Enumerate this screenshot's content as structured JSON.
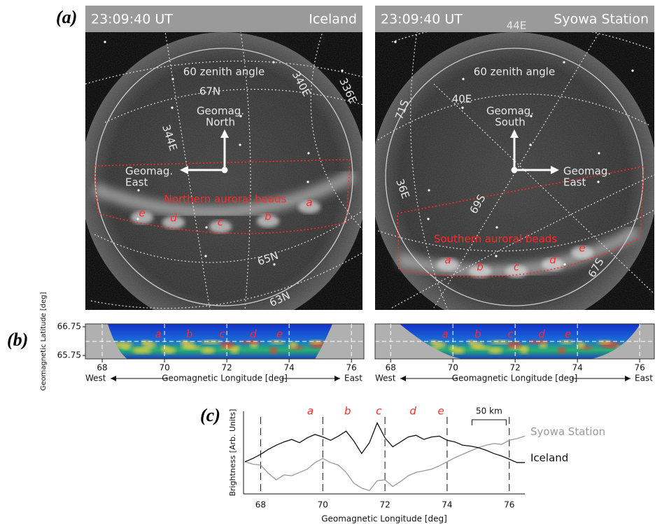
{
  "panel_a": {
    "label": "(a)",
    "cameras": [
      {
        "time": "23:09:40 UT",
        "site": "Iceland",
        "zenith_label": "60 zenith angle",
        "grid_labels": [
          "67N",
          "340E",
          "336E",
          "344E",
          "65N",
          "63N"
        ],
        "arrow_up": [
          "Geomag.",
          "North"
        ],
        "arrow_side": [
          "Geomag.",
          "East"
        ],
        "region_label": "Northern auroral beads",
        "beads": [
          "a",
          "b",
          "c",
          "d",
          "e"
        ]
      },
      {
        "time": "23:09:40 UT",
        "site": "Syowa Station",
        "zenith_label": "60 zenith angle",
        "grid_labels": [
          "44E",
          "71S",
          "40E",
          "36E",
          "69S",
          "67S"
        ],
        "arrow_up": [
          "Geomag.",
          "South"
        ],
        "arrow_side": [
          "Geomag.",
          "East"
        ],
        "region_label": "Southern auroral beads",
        "beads": [
          "a",
          "b",
          "c",
          "d",
          "e"
        ]
      }
    ]
  },
  "chart_data": [
    {
      "type": "keogram",
      "panel_label": "(b)",
      "ylabel": "Geomagnetic Latitude [deg]",
      "ylim": [
        65.63,
        66.85
      ],
      "yticks": [
        65.75,
        66.75
      ],
      "xlim": [
        67.46,
        76.4
      ],
      "xticks": [
        68,
        70,
        72,
        74,
        76
      ],
      "xlabel": "Geomagnetic Longitude [deg]",
      "west": "West",
      "east": "East",
      "annotations": [
        {
          "text": "a",
          "x": 69.8
        },
        {
          "text": "b",
          "x": 70.8
        },
        {
          "text": "c",
          "x": 71.85
        },
        {
          "text": "d",
          "x": 72.85
        },
        {
          "text": "e",
          "x": 73.7
        }
      ]
    },
    {
      "type": "keogram",
      "xlim": [
        67.5,
        76.47
      ],
      "xticks": [
        68,
        70,
        72,
        74,
        76
      ],
      "xlabel": "Geomagnetic Longitude [deg]",
      "west": "West",
      "east": "East",
      "annotations": [
        {
          "text": "a",
          "x": 69.75
        },
        {
          "text": "b",
          "x": 70.8
        },
        {
          "text": "c",
          "x": 71.85
        },
        {
          "text": "d",
          "x": 72.85
        },
        {
          "text": "e",
          "x": 73.7
        }
      ]
    },
    {
      "type": "line",
      "panel_label": "(c)",
      "xlabel": "Geomagnetic Longitude [deg]",
      "ylabel": "Brightness [Arb. Units]",
      "xlim": [
        67.45,
        76.5
      ],
      "xticks": [
        68,
        70,
        72,
        74,
        76
      ],
      "ylim": [
        0,
        10
      ],
      "x": [
        67.5,
        67.75,
        68,
        68.25,
        68.5,
        68.75,
        69,
        69.25,
        69.5,
        69.75,
        70,
        70.25,
        70.5,
        70.75,
        71,
        71.25,
        71.5,
        71.75,
        72,
        72.25,
        72.5,
        72.75,
        73,
        73.25,
        73.5,
        73.75,
        74,
        74.25,
        74.5,
        74.75,
        75,
        75.25,
        75.5,
        75.75,
        76,
        76.25,
        76.5
      ],
      "series": [
        {
          "name": "Syowa Station",
          "color": "#999999",
          "values": [
            3.9,
            3.6,
            3.5,
            2.5,
            1.7,
            2.3,
            2.2,
            2.6,
            3.0,
            3.8,
            4.3,
            3.8,
            3.5,
            2.6,
            1.3,
            0.7,
            0.4,
            1.6,
            1.7,
            0.9,
            1.5,
            2.2,
            2.6,
            2.8,
            3.0,
            3.4,
            3.9,
            4.4,
            4.8,
            5.2,
            5.6,
            5.9,
            6.1,
            6.0,
            6.5,
            6.7,
            7.0
          ]
        },
        {
          "name": "Iceland",
          "color": "#111111",
          "values": [
            3.9,
            4.3,
            4.8,
            5.4,
            5.9,
            6.3,
            6.6,
            6.2,
            6.8,
            7.2,
            6.9,
            6.5,
            7.0,
            7.6,
            6.4,
            4.9,
            6.2,
            8.6,
            6.8,
            5.7,
            6.3,
            6.9,
            7.1,
            6.6,
            6.9,
            7.0,
            6.5,
            6.3,
            5.9,
            5.8,
            5.6,
            5.3,
            4.9,
            4.6,
            4.2,
            3.8,
            3.8
          ]
        }
      ],
      "annotations": [
        {
          "text": "a",
          "x": 69.6
        },
        {
          "text": "b",
          "x": 70.8
        },
        {
          "text": "c",
          "x": 71.8
        },
        {
          "text": "d",
          "x": 72.9
        },
        {
          "text": "e",
          "x": 73.8
        }
      ],
      "scale_bar": {
        "label": "50 km",
        "x": [
          74.8,
          75.9
        ]
      }
    }
  ]
}
